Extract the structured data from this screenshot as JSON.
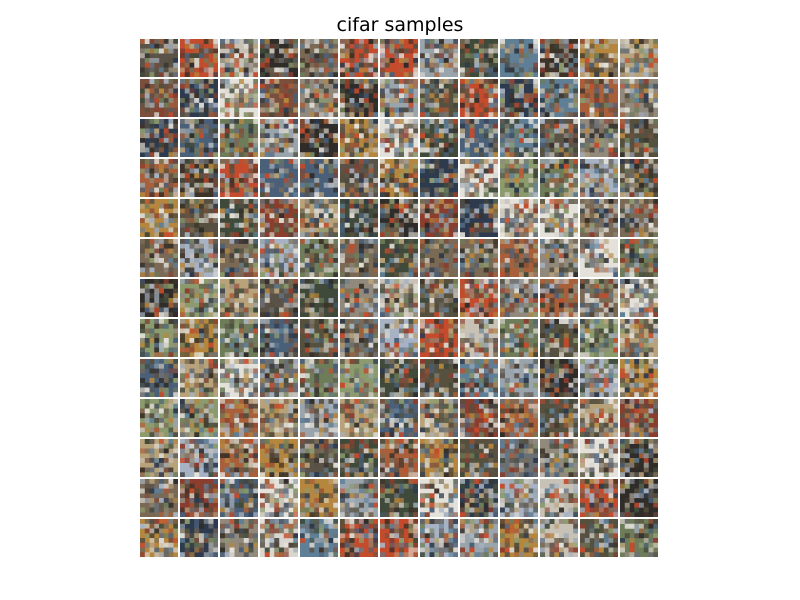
{
  "figure": {
    "title": "cifar samples"
  },
  "grid": {
    "rows": 13,
    "cols": 13
  },
  "palette": [
    "#5b5248",
    "#7a6a55",
    "#8b3d2e",
    "#3f4a3a",
    "#9aa4ad",
    "#c8c2b6",
    "#2f2c2a",
    "#6e7c5a",
    "#b5863e",
    "#4a5f78",
    "#a7b3c4",
    "#d9d6cf",
    "#7c4f3c",
    "#56503e",
    "#91897c",
    "#c44b2b",
    "#2e3a4d",
    "#8c9b6e",
    "#e3e1da",
    "#6b6f74",
    "#b8a27a",
    "#3d3328",
    "#a85f3a",
    "#5f7f96"
  ]
}
